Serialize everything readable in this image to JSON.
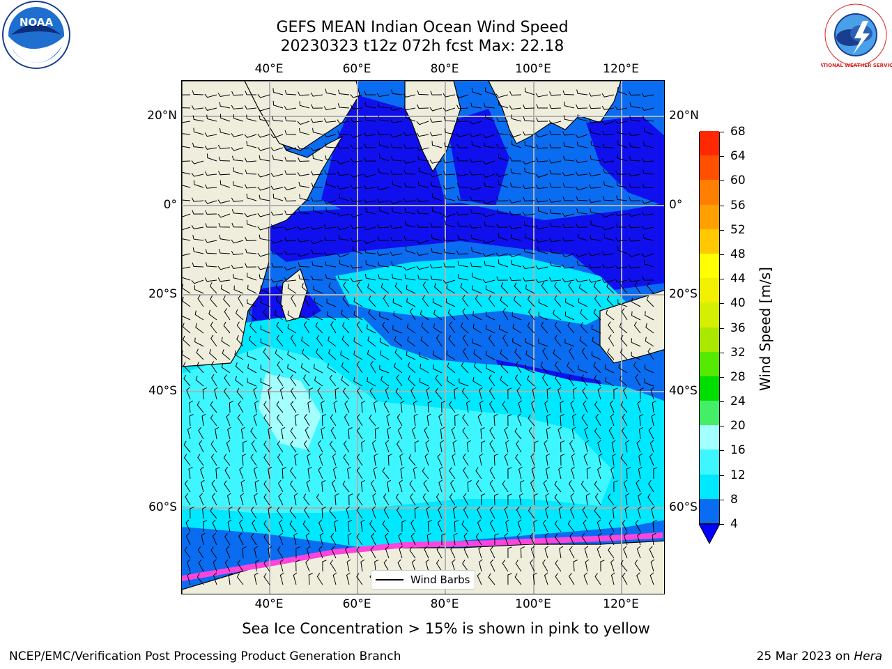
{
  "title_line1": "GEFS MEAN Indian Ocean Wind Speed",
  "title_line2": "20230323 t12z 072h fcst   Max: 22.18",
  "lon_labels": [
    "40°E",
    "60°E",
    "80°E",
    "100°E",
    "120°E"
  ],
  "lat_labels": [
    "20°N",
    "0°",
    "20°S",
    "40°S",
    "60°S"
  ],
  "legend_label": "Wind Barbs",
  "colorbar": {
    "label": "Wind Speed [m/s]",
    "ticks": [
      "4",
      "8",
      "12",
      "16",
      "20",
      "24",
      "28",
      "32",
      "36",
      "40",
      "44",
      "48",
      "52",
      "56",
      "60",
      "64",
      "68"
    ],
    "colors": [
      "#0a6cf0",
      "#00e8ff",
      "#3ef6ff",
      "#a4ffff",
      "#44ee66",
      "#00dd00",
      "#55e800",
      "#aae800",
      "#d4f000",
      "#f0f000",
      "#ffff00",
      "#ffc800",
      "#ffa000",
      "#ff8000",
      "#ff5000",
      "#ff2800"
    ],
    "under_color": "#0000ff"
  },
  "subtitle": "Sea Ice Concentration > 15% is shown in pink to yellow",
  "footer_left": "NCEP/EMC/Verification Post Processing Product Generation Branch",
  "footer_date": "25 Mar 2023 on ",
  "footer_machine": "Hera",
  "noaa_logo_text": "NOAA",
  "nws_logo_text": "NATIONAL WEATHER SERVICE",
  "colors": {
    "land": "#efeedd",
    "wind_4_8": "#0a6cf0",
    "wind_lt_4": "#1010ee",
    "wind_8_12": "#00e8ff",
    "wind_12_16": "#3ef6ff",
    "wind_16_20": "#a4ffff",
    "ice": "#ff44dd"
  }
}
